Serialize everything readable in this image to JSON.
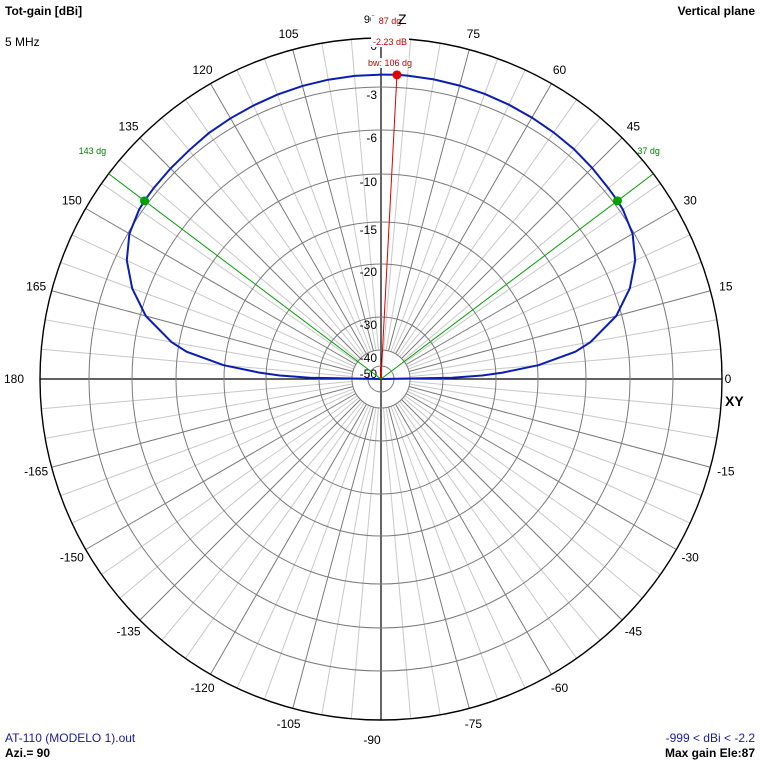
{
  "header": {
    "quantity": "Tot-gain [dBi]",
    "frequency": "5 MHz",
    "plane": "Vertical plane"
  },
  "footer": {
    "file": "AT-110 (MODELO 1).out",
    "azimuth": "Azi.= 90",
    "range": "-999 < dBi < -2.2",
    "max_gain": "Max gain Ele:87"
  },
  "chart_data": {
    "type": "polar",
    "title": "",
    "angle_unit": "deg",
    "angle_ticks": [
      0,
      15,
      30,
      45,
      60,
      75,
      90,
      105,
      120,
      135,
      150,
      165,
      180,
      -165,
      -150,
      -135,
      -120,
      -105,
      -90,
      -75,
      -60,
      -45,
      -30,
      -15
    ],
    "angle_label_extra": "90",
    "radial_ticks": [
      0,
      -3,
      -6,
      -10,
      -15,
      -20,
      -30,
      -40,
      -50
    ],
    "axis_labels": {
      "z": "Z",
      "xy": "XY"
    },
    "grid": true,
    "series": [
      {
        "color": "#0a1eb4",
        "elevation_deg": [
          0,
          1,
          2,
          3,
          5,
          8,
          10,
          15,
          20,
          25,
          30,
          35,
          37,
          40,
          45,
          50,
          55,
          60,
          65,
          70,
          75,
          80,
          85,
          87,
          90,
          95,
          100,
          105,
          110,
          115,
          120,
          125,
          130,
          135,
          140,
          143,
          145,
          150,
          155,
          160,
          165,
          170,
          172,
          175,
          177,
          178,
          179,
          180
        ],
        "gain_dbi": [
          -99,
          -28.3,
          -22.6,
          -19.2,
          -14.9,
          -10.9,
          -9.3,
          -6.5,
          -4.9,
          -3.8,
          -3.1,
          -2.8,
          -2.75,
          -2.7,
          -2.6,
          -2.5,
          -2.45,
          -2.4,
          -2.35,
          -2.3,
          -2.28,
          -2.25,
          -2.23,
          -2.23,
          -2.24,
          -2.25,
          -2.27,
          -2.3,
          -2.35,
          -2.4,
          -2.45,
          -2.5,
          -2.6,
          -2.65,
          -2.7,
          -2.75,
          -2.8,
          -3.1,
          -3.8,
          -4.9,
          -6.5,
          -9.3,
          -10.9,
          -14.9,
          -19.2,
          -22.6,
          -28.3,
          -99
        ]
      }
    ],
    "markers": {
      "max_gain": {
        "angle": 87,
        "gain": -2.23,
        "angle_label": "87 dg",
        "gain_label": "-2.23 dB",
        "beamwidth_label": "bw: 106 dg"
      },
      "half_power": [
        {
          "angle": 37,
          "gain": -2.75,
          "label": "37 dg"
        },
        {
          "angle": 143,
          "gain": -2.75,
          "label": "143 dg"
        }
      ]
    }
  }
}
